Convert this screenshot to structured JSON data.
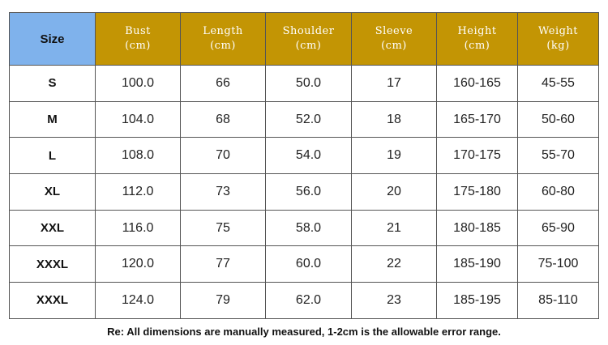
{
  "table": {
    "corner_label": "Size",
    "columns": [
      {
        "name": "Bust",
        "unit": "(cm)"
      },
      {
        "name": "Length",
        "unit": "(cm)"
      },
      {
        "name": "Shoulder",
        "unit": "(cm)"
      },
      {
        "name": "Sleeve",
        "unit": "(cm)"
      },
      {
        "name": "Height",
        "unit": "(cm)"
      },
      {
        "name": "Weight",
        "unit": "(kg)"
      }
    ],
    "rows": [
      {
        "size": "S",
        "values": [
          "100.0",
          "66",
          "50.0",
          "17",
          "160-165",
          "45-55"
        ]
      },
      {
        "size": "M",
        "values": [
          "104.0",
          "68",
          "52.0",
          "18",
          "165-170",
          "50-60"
        ]
      },
      {
        "size": "L",
        "values": [
          "108.0",
          "70",
          "54.0",
          "19",
          "170-175",
          "55-70"
        ]
      },
      {
        "size": "XL",
        "values": [
          "112.0",
          "73",
          "56.0",
          "20",
          "175-180",
          "60-80"
        ]
      },
      {
        "size": "XXL",
        "values": [
          "116.0",
          "75",
          "58.0",
          "21",
          "180-185",
          "65-90"
        ]
      },
      {
        "size": "XXXL",
        "values": [
          "120.0",
          "77",
          "60.0",
          "22",
          "185-190",
          "75-100"
        ]
      },
      {
        "size": "XXXL",
        "values": [
          "124.0",
          "79",
          "62.0",
          "23",
          "185-195",
          "85-110"
        ]
      }
    ]
  },
  "note": "Re: All dimensions are manually measured, 1-2cm is the allowable error range.",
  "colors": {
    "corner_header": "#7fb2ec",
    "column_header": "#c39504",
    "column_header_text": "#ffffff",
    "border": "#555555"
  }
}
